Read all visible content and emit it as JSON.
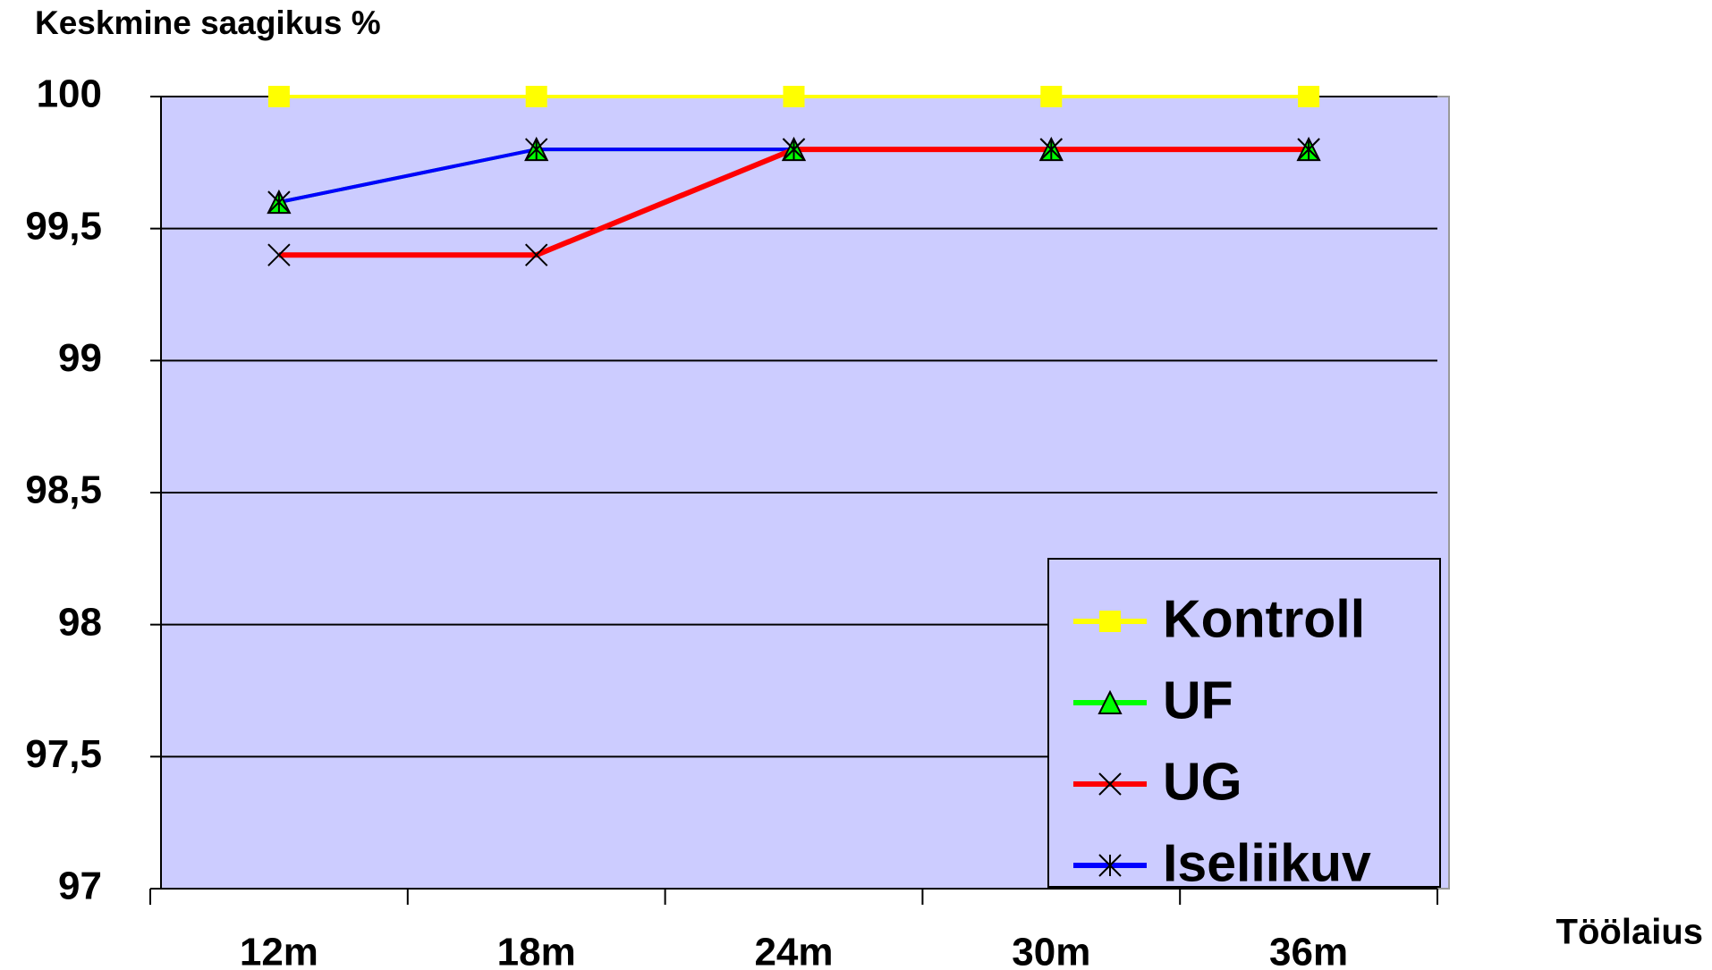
{
  "chart_data": {
    "type": "line",
    "title": "Keskmine saagikus %",
    "x_label": "Töölaius",
    "categories": [
      "12m",
      "18m",
      "24m",
      "30m",
      "36m"
    ],
    "series": [
      {
        "name": "Kontroll",
        "color": "#ffff00",
        "marker": "square",
        "values": [
          100,
          100,
          100,
          100,
          100
        ]
      },
      {
        "name": "UF",
        "color": "#00ff00",
        "marker": "triangle",
        "values": [
          99.6,
          99.8,
          99.8,
          99.8,
          99.8
        ]
      },
      {
        "name": "Iseliikuv",
        "color": "#0000ff",
        "marker": "asterisk",
        "values": [
          99.6,
          99.8,
          99.8,
          99.8,
          99.8
        ]
      },
      {
        "name": "UG",
        "color": "#ff0000",
        "marker": "x",
        "values": [
          99.4,
          99.4,
          99.8,
          99.8,
          99.8
        ]
      }
    ],
    "legend_order": [
      0,
      1,
      3,
      2
    ],
    "ylim": [
      97,
      100
    ],
    "yticks": [
      97,
      {
        "value": 97.5,
        "label": "97,5"
      },
      98,
      {
        "value": 98.5,
        "label": "98,5"
      },
      99,
      {
        "value": 99.5,
        "label": "99,5"
      },
      100
    ],
    "grid": true,
    "legend": "lower right",
    "plot_background": "#ccccff"
  }
}
